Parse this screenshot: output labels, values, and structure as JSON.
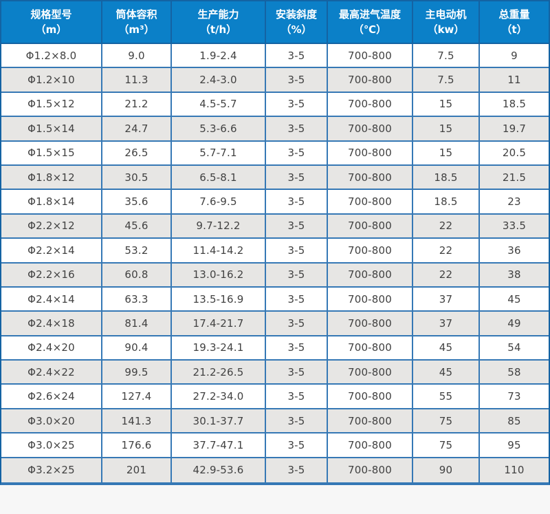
{
  "colors": {
    "header_bg": "#0b80c8",
    "header_border": "#1463a3",
    "grid_border": "#3578b5",
    "row_bg": "#ffffff",
    "row_alt_bg": "#e7e6e4",
    "cell_text": "#414141",
    "header_text": "#ffffff",
    "page_bg": "#f7f7f7"
  },
  "table": {
    "columns": [
      {
        "label": "规格型号",
        "unit": "（m）"
      },
      {
        "label": "筒体容积",
        "unit": "（m³）"
      },
      {
        "label": "生产能力",
        "unit": "（t/h）"
      },
      {
        "label": "安装斜度",
        "unit": "（%）"
      },
      {
        "label": "最高进气温度",
        "unit": "（℃）"
      },
      {
        "label": "主电动机",
        "unit": "（kw）"
      },
      {
        "label": "总重量",
        "unit": "（t）"
      }
    ],
    "rows": [
      [
        "Φ1.2×8.0",
        "9.0",
        "1.9-2.4",
        "3-5",
        "700-800",
        "7.5",
        "9"
      ],
      [
        "Φ1.2×10",
        "11.3",
        "2.4-3.0",
        "3-5",
        "700-800",
        "7.5",
        "11"
      ],
      [
        "Φ1.5×12",
        "21.2",
        "4.5-5.7",
        "3-5",
        "700-800",
        "15",
        "18.5"
      ],
      [
        "Φ1.5×14",
        "24.7",
        "5.3-6.6",
        "3-5",
        "700-800",
        "15",
        "19.7"
      ],
      [
        "Φ1.5×15",
        "26.5",
        "5.7-7.1",
        "3-5",
        "700-800",
        "15",
        "20.5"
      ],
      [
        "Φ1.8×12",
        "30.5",
        "6.5-8.1",
        "3-5",
        "700-800",
        "18.5",
        "21.5"
      ],
      [
        "Φ1.8×14",
        "35.6",
        "7.6-9.5",
        "3-5",
        "700-800",
        "18.5",
        "23"
      ],
      [
        "Φ2.2×12",
        "45.6",
        "9.7-12.2",
        "3-5",
        "700-800",
        "22",
        "33.5"
      ],
      [
        "Φ2.2×14",
        "53.2",
        "11.4-14.2",
        "3-5",
        "700-800",
        "22",
        "36"
      ],
      [
        "Φ2.2×16",
        "60.8",
        "13.0-16.2",
        "3-5",
        "700-800",
        "22",
        "38"
      ],
      [
        "Φ2.4×14",
        "63.3",
        "13.5-16.9",
        "3-5",
        "700-800",
        "37",
        "45"
      ],
      [
        "Φ2.4×18",
        "81.4",
        "17.4-21.7",
        "3-5",
        "700-800",
        "37",
        "49"
      ],
      [
        "Φ2.4×20",
        "90.4",
        "19.3-24.1",
        "3-5",
        "700-800",
        "45",
        "54"
      ],
      [
        "Φ2.4×22",
        "99.5",
        "21.2-26.5",
        "3-5",
        "700-800",
        "45",
        "58"
      ],
      [
        "Φ2.6×24",
        "127.4",
        "27.2-34.0",
        "3-5",
        "700-800",
        "55",
        "73"
      ],
      [
        "Φ3.0×20",
        "141.3",
        "30.1-37.7",
        "3-5",
        "700-800",
        "75",
        "85"
      ],
      [
        "Φ3.0×25",
        "176.6",
        "37.7-47.1",
        "3-5",
        "700-800",
        "75",
        "95"
      ],
      [
        "Φ3.2×25",
        "201",
        "42.9-53.6",
        "3-5",
        "700-800",
        "90",
        "110"
      ]
    ]
  }
}
